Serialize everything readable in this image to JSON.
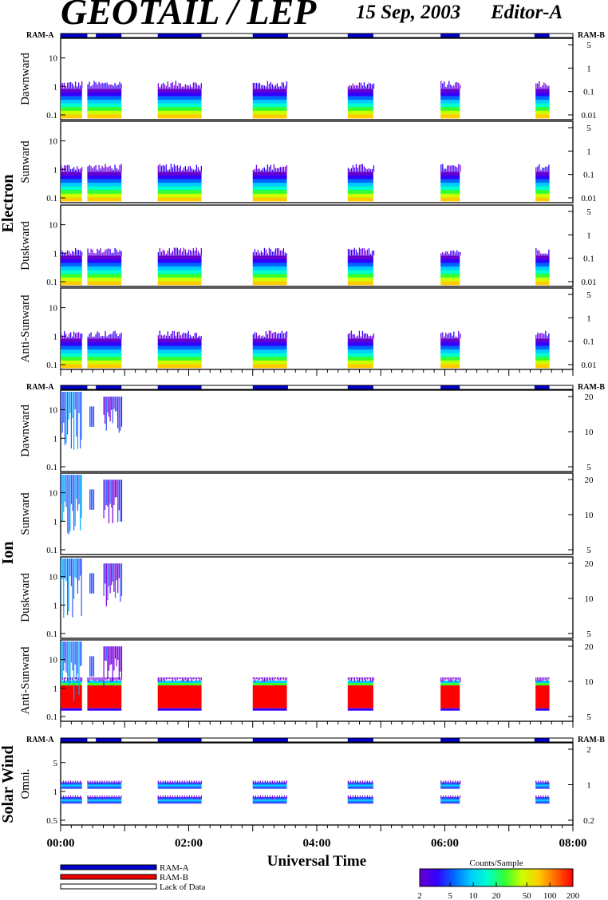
{
  "header": {
    "title": "GEOTAIL / LEP",
    "date": "15 Sep, 2003",
    "editor": "Editor-A"
  },
  "colors": {
    "ram_a": "#0000cc",
    "ram_b": "#ee0000",
    "colorbar_stops": [
      "#6600cc",
      "#3300ff",
      "#0066ff",
      "#00ccff",
      "#00ffcc",
      "#33ff33",
      "#ccff00",
      "#ffcc00",
      "#ff6600",
      "#ff0000"
    ]
  },
  "chart_data": {
    "type": "heatmap",
    "x_axis": {
      "label": "Universal Time",
      "range": [
        "00:00",
        "08:00"
      ],
      "tick_labels": [
        "00:00",
        "02:00",
        "04:00",
        "06:00",
        "08:00"
      ]
    },
    "ram_strip": {
      "left_label": "RAM-A",
      "right_label": "RAM-B",
      "ram_a_intervals": [
        [
          "00:00",
          "00:25"
        ],
        [
          "00:33",
          "00:57"
        ],
        [
          "01:31",
          "02:12"
        ],
        [
          "03:00",
          "03:33"
        ],
        [
          "04:29",
          "04:53"
        ],
        [
          "05:56",
          "06:14"
        ],
        [
          "07:24",
          "07:38"
        ]
      ]
    },
    "data_intervals": [
      [
        "00:00",
        "00:20"
      ],
      [
        "00:25",
        "00:57"
      ],
      [
        "01:31",
        "02:12"
      ],
      [
        "03:00",
        "03:32"
      ],
      [
        "04:29",
        "04:53"
      ],
      [
        "05:56",
        "06:14"
      ],
      [
        "07:25",
        "07:38"
      ]
    ],
    "groups": [
      {
        "name": "Electron",
        "panels": [
          {
            "label": "Dawnward",
            "left_ticks": [
              "0.1",
              "1",
              "10"
            ],
            "right_ticks": [
              "0.01",
              "0.1",
              "1",
              "5"
            ]
          },
          {
            "label": "Sunward",
            "left_ticks": [
              "0.1",
              "1",
              "10"
            ],
            "right_ticks": [
              "0.01",
              "0.1",
              "1",
              "5"
            ]
          },
          {
            "label": "Duskward",
            "left_ticks": [
              "0.1",
              "1",
              "10"
            ],
            "right_ticks": [
              "0.01",
              "0.1",
              "1",
              "5"
            ]
          },
          {
            "label": "Anti-Sunward",
            "left_ticks": [
              "0.1",
              "1",
              "10"
            ],
            "right_ticks": [
              "0.01",
              "0.1",
              "1",
              "5"
            ]
          }
        ]
      },
      {
        "name": "Ion",
        "panels": [
          {
            "label": "Dawnward",
            "left_ticks": [
              "0.1",
              "1",
              "10"
            ],
            "right_ticks": [
              "5",
              "10",
              "20"
            ]
          },
          {
            "label": "Sunward",
            "left_ticks": [
              "0.1",
              "1",
              "10"
            ],
            "right_ticks": [
              "5",
              "10",
              "20"
            ]
          },
          {
            "label": "Duskward",
            "left_ticks": [
              "0.1",
              "1",
              "10"
            ],
            "right_ticks": [
              "5",
              "10",
              "20"
            ]
          },
          {
            "label": "Anti-Sunward",
            "left_ticks": [
              "0.1",
              "1",
              "10"
            ],
            "right_ticks": [
              "5",
              "10",
              "20"
            ]
          }
        ]
      },
      {
        "name": "Solar Wind",
        "panels": [
          {
            "label": "Omni.",
            "left_ticks": [
              "0.5",
              "1",
              "5"
            ],
            "right_ticks": [
              "0.2",
              "1",
              "2"
            ]
          }
        ]
      }
    ],
    "legend": {
      "ram_a": "RAM-A",
      "ram_b": "RAM-B",
      "lack": "Lack of Data"
    },
    "colorbar": {
      "title": "Counts/Sample",
      "ticks": [
        "2",
        "5",
        "10",
        "20",
        "50",
        "100",
        "200"
      ],
      "range": [
        2,
        200
      ],
      "scale": "log"
    }
  }
}
